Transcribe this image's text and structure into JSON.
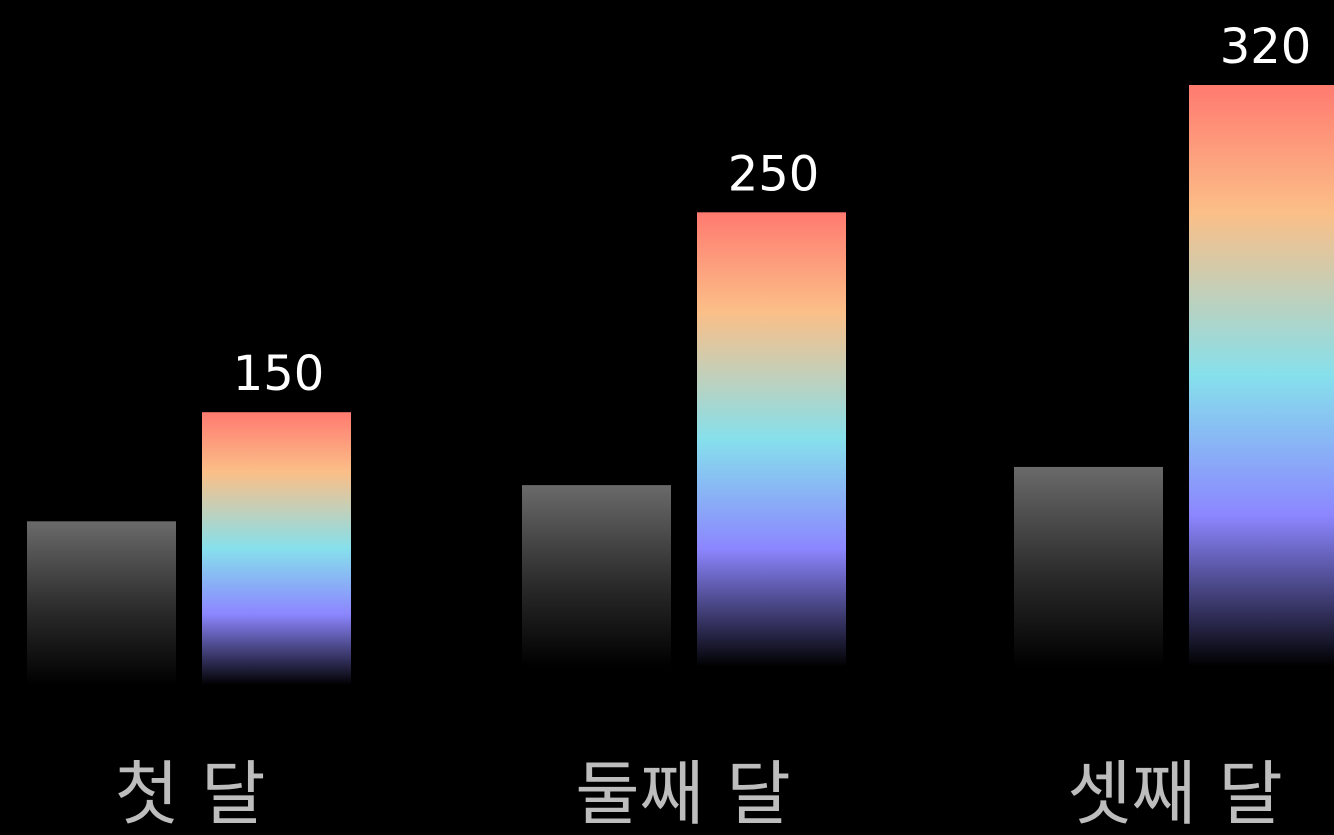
{
  "chart_data": {
    "type": "bar",
    "categories": [
      "첫 달",
      "둘째 달",
      "셋째 달"
    ],
    "series": [
      {
        "values": [
          90,
          100,
          110
        ]
      },
      {
        "values": [
          150,
          250,
          320
        ]
      }
    ],
    "data_labels": [
      "150",
      "250",
      "320"
    ],
    "ylim": [
      0,
      320
    ],
    "grid": false,
    "legend": "none",
    "colors": {
      "background": "#000000",
      "baseline_bar_top": "#6a6a6a",
      "baseline_bar_bottom": "#000000",
      "gradient_stops": [
        "#ff7a70",
        "#fbbf88",
        "#86e0ec",
        "#8c86ff",
        "#000000"
      ],
      "value_label": "#ffffff",
      "category_label": "#bdbdbd"
    }
  }
}
